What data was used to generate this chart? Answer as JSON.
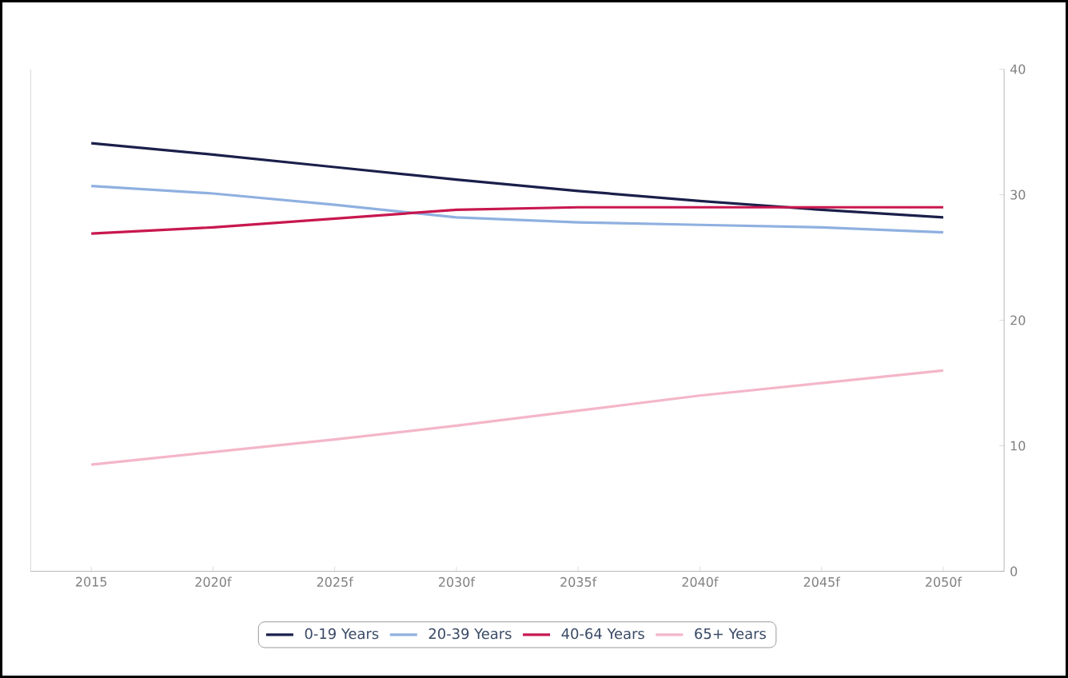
{
  "chart_data": {
    "type": "line",
    "categories": [
      "2015",
      "2020f",
      "2025f",
      "2030f",
      "2035f",
      "2040f",
      "2045f",
      "2050f"
    ],
    "series": [
      {
        "name": "0-19 Years",
        "color": "#1a1f4a",
        "values": [
          34.1,
          33.2,
          32.2,
          31.2,
          30.3,
          29.5,
          28.8,
          28.2
        ]
      },
      {
        "name": "20-39 Years",
        "color": "#8fb0e0",
        "values": [
          30.7,
          30.1,
          29.2,
          28.2,
          27.8,
          27.6,
          27.4,
          27.0
        ]
      },
      {
        "name": "40-64 Years",
        "color": "#c8174f",
        "values": [
          26.9,
          27.4,
          28.1,
          28.8,
          29.0,
          29.0,
          29.0,
          29.0
        ]
      },
      {
        "name": "65+ Years",
        "color": "#f4b6c8",
        "values": [
          8.5,
          9.5,
          10.5,
          11.6,
          12.8,
          14.0,
          15.0,
          16.0
        ]
      }
    ],
    "ylim": [
      0,
      40
    ],
    "yticks": [
      0,
      10,
      20,
      30,
      40
    ],
    "grid": false,
    "legend": "bottom",
    "marker": "none",
    "line_style": "solid"
  }
}
